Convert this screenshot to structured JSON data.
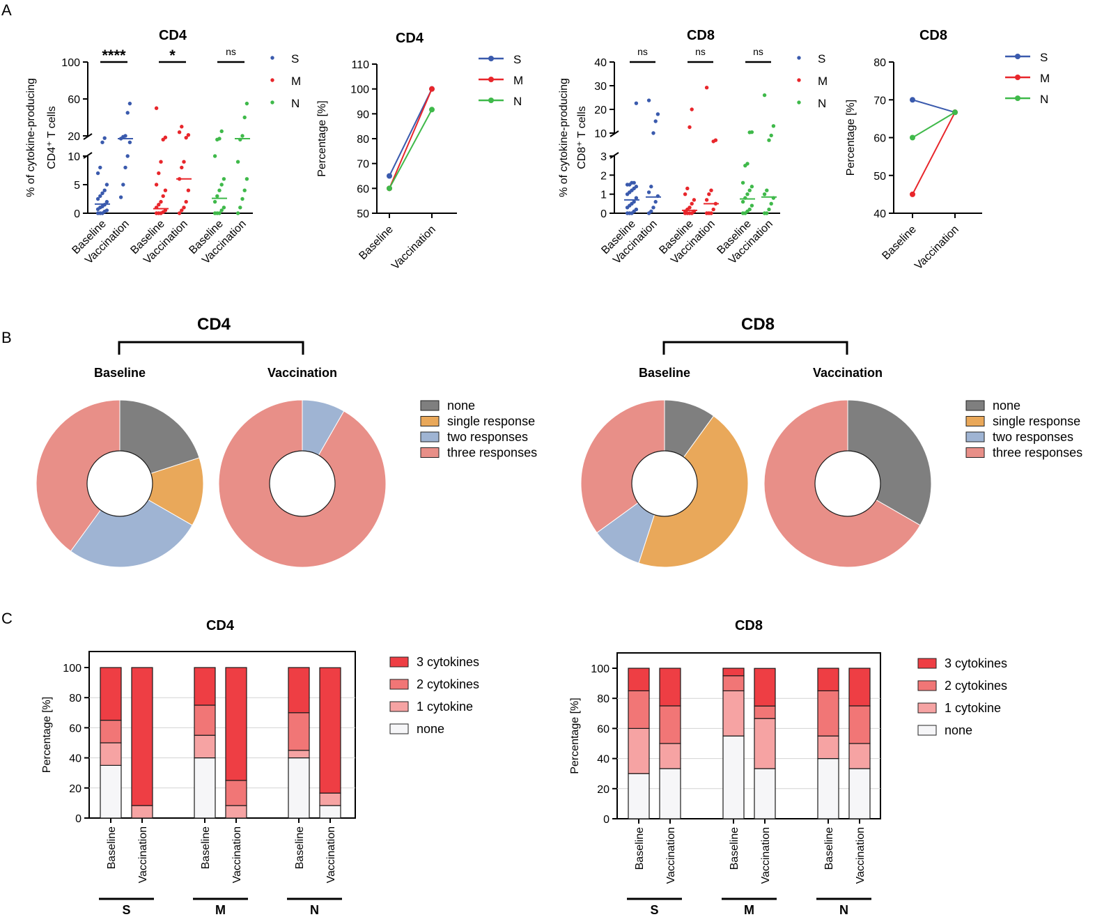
{
  "colors": {
    "S": "#3a5aad",
    "M": "#e8262b",
    "N": "#3fb94a",
    "none": "#7f7f7f",
    "single": "#e9a85a",
    "two": "#9fb4d3",
    "three": "#e88f88",
    "cyt3": "#ee3e44",
    "cyt2": "#f17676",
    "cyt1": "#f6a3a3",
    "cyt0": "#f6f6f8"
  },
  "panels": {
    "A": "A",
    "B": "B",
    "C": "C"
  },
  "chart_data": [
    {
      "id": "A1",
      "type": "scatter",
      "title": "CD4",
      "ylabel_line1": "% of cytokine-producing",
      "ylabel_line2": "CD4⁺ T cells",
      "yaxis": {
        "segments": [
          {
            "range": [
              0,
              10
            ],
            "ticks": [
              0,
              5,
              10
            ]
          },
          {
            "range": [
              20,
              100
            ],
            "ticks": [
              20,
              60,
              100
            ]
          }
        ]
      },
      "groups": [
        {
          "name": "S",
          "significance": "****",
          "baseline": {
            "points": [
              0,
              0,
              0,
              0.3,
              0.5,
              0.7,
              1,
              1.2,
              1.5,
              2,
              2.5,
              3,
              3.5,
              4,
              5,
              7,
              8,
              13,
              17.6
            ],
            "median": 1.6
          },
          "vaccination": {
            "points": [
              2.8,
              5,
              8,
              10,
              13,
              17,
              19,
              20,
              45,
              55
            ],
            "median": 17
          }
        },
        {
          "name": "M",
          "significance": "*",
          "baseline": {
            "points": [
              0,
              0,
              0,
              0.2,
              0.5,
              1,
              1.5,
              2,
              3,
              4,
              5,
              7,
              9,
              16,
              18.3,
              50
            ],
            "median": 0.8
          },
          "vaccination": {
            "points": [
              0,
              0.5,
              1,
              2,
              4,
              6,
              8,
              9,
              18,
              21,
              24,
              30
            ],
            "median": 6
          }
        },
        {
          "name": "N",
          "significance": "ns",
          "baseline": {
            "points": [
              0,
              0,
              0,
              0.5,
              1,
              2,
              3,
              4,
              5,
              6,
              10,
              16,
              17,
              25
            ],
            "median": 2.6
          },
          "vaccination": {
            "points": [
              0,
              1,
              2.5,
              4,
              6,
              9,
              16,
              20,
              40,
              55
            ],
            "median": 17
          }
        }
      ],
      "categories": [
        "Baseline",
        "Vaccination"
      ],
      "legend": [
        "S",
        "M",
        "N"
      ]
    },
    {
      "id": "A2",
      "type": "line",
      "title": "CD4",
      "ylabel": "Percentage [%]",
      "ylim": [
        50,
        110
      ],
      "yticks": [
        50,
        60,
        70,
        80,
        90,
        100,
        110
      ],
      "categories": [
        "Baseline",
        "Vaccination"
      ],
      "series": [
        {
          "name": "S",
          "values": [
            65,
            100
          ]
        },
        {
          "name": "M",
          "values": [
            60,
            100
          ]
        },
        {
          "name": "N",
          "values": [
            60,
            91.7
          ]
        }
      ]
    },
    {
      "id": "A3",
      "type": "scatter",
      "title": "CD8",
      "ylabel_line1": "% of cytokine-producing",
      "ylabel_line2": "CD8⁺ T cells",
      "yaxis": {
        "segments": [
          {
            "range": [
              0,
              3
            ],
            "ticks": [
              0,
              1,
              2,
              3
            ]
          },
          {
            "range": [
              10,
              40
            ],
            "ticks": [
              10,
              20,
              30,
              40
            ]
          }
        ]
      },
      "groups": [
        {
          "name": "S",
          "significance": "ns",
          "baseline": {
            "points": [
              0,
              0,
              0,
              0.1,
              0.2,
              0.3,
              0.4,
              0.5,
              0.6,
              0.8,
              1,
              1.1,
              1.2,
              1.3,
              1.4,
              1.5,
              1.5,
              1.6,
              1.6,
              22.6
            ],
            "median": 0.7
          },
          "vaccination": {
            "points": [
              0,
              0.1,
              0.3,
              0.6,
              0.9,
              1.1,
              1.4,
              10,
              15,
              18,
              23.8
            ],
            "median": 0.85
          }
        },
        {
          "name": "M",
          "significance": "ns",
          "baseline": {
            "points": [
              0,
              0,
              0,
              0,
              0.1,
              0.1,
              0.2,
              0.3,
              0.5,
              0.7,
              1,
              1.3,
              12.5,
              20
            ],
            "median": 0.15
          },
          "vaccination": {
            "points": [
              0,
              0,
              0,
              0.2,
              0.5,
              0.7,
              1,
              1.2,
              6.5,
              7,
              29.2
            ],
            "median": 0.5
          }
        },
        {
          "name": "N",
          "significance": "ns",
          "baseline": {
            "points": [
              0,
              0,
              0.1,
              0.2,
              0.4,
              0.6,
              0.8,
              1,
              1.2,
              1.4,
              1.6,
              2.5,
              2.6,
              10.3,
              10.4
            ],
            "median": 0.75
          },
          "vaccination": {
            "points": [
              0,
              0,
              0.2,
              0.5,
              0.8,
              1,
              1.2,
              7,
              9,
              13,
              26
            ],
            "median": 0.85
          }
        }
      ],
      "categories": [
        "Baseline",
        "Vaccination"
      ],
      "legend": [
        "S",
        "M",
        "N"
      ]
    },
    {
      "id": "A4",
      "type": "line",
      "title": "CD8",
      "ylabel": "Percentage [%]",
      "ylim": [
        40,
        80
      ],
      "yticks": [
        40,
        50,
        60,
        70,
        80
      ],
      "categories": [
        "Baseline",
        "Vaccination"
      ],
      "series": [
        {
          "name": "S",
          "values": [
            70,
            66.7
          ]
        },
        {
          "name": "M",
          "values": [
            45,
            66.7
          ]
        },
        {
          "name": "N",
          "values": [
            60,
            66.7
          ]
        }
      ]
    },
    {
      "id": "B1",
      "type": "pie",
      "title": "CD4",
      "subtitles": [
        "Baseline",
        "Vaccination"
      ],
      "legend": [
        "none",
        "single response",
        "two responses",
        "three responses"
      ],
      "donuts": [
        {
          "label": "Baseline",
          "values": [
            20,
            13.3,
            26.7,
            40
          ]
        },
        {
          "label": "Vaccination",
          "values": [
            0,
            0,
            8.3,
            91.7
          ]
        }
      ]
    },
    {
      "id": "B2",
      "type": "pie",
      "title": "CD8",
      "subtitles": [
        "Baseline",
        "Vaccination"
      ],
      "legend": [
        "none",
        "single response",
        "two responses",
        "three responses"
      ],
      "donuts": [
        {
          "label": "Baseline",
          "values": [
            10,
            45,
            10,
            35
          ]
        },
        {
          "label": "Vaccination",
          "values": [
            33.3,
            0,
            0,
            66.7
          ]
        }
      ]
    },
    {
      "id": "C1",
      "type": "bar",
      "title": "CD4",
      "ylabel": "Percentage [%]",
      "ylim": [
        0,
        100
      ],
      "yticks": [
        0,
        20,
        40,
        60,
        80,
        100
      ],
      "groups": [
        "S",
        "M",
        "N"
      ],
      "categories": [
        "Baseline",
        "Vaccination"
      ],
      "legend": [
        "3 cytokines",
        "2 cytokines",
        "1 cytokine",
        "none"
      ],
      "bars": [
        {
          "group": "S",
          "category": "Baseline",
          "none": 35,
          "c1": 15,
          "c2": 15,
          "c3": 35
        },
        {
          "group": "S",
          "category": "Vaccination",
          "none": 0,
          "c1": 8.3,
          "c2": 0,
          "c3": 91.7
        },
        {
          "group": "M",
          "category": "Baseline",
          "none": 40,
          "c1": 15,
          "c2": 20,
          "c3": 25
        },
        {
          "group": "M",
          "category": "Vaccination",
          "none": 0,
          "c1": 8.3,
          "c2": 16.7,
          "c3": 75
        },
        {
          "group": "N",
          "category": "Baseline",
          "none": 40,
          "c1": 5,
          "c2": 25,
          "c3": 30
        },
        {
          "group": "N",
          "category": "Vaccination",
          "none": 8.3,
          "c1": 8.3,
          "c2": 0,
          "c3": 83.3
        }
      ]
    },
    {
      "id": "C2",
      "type": "bar",
      "title": "CD8",
      "ylabel": "Percentage [%]",
      "ylim": [
        0,
        100
      ],
      "yticks": [
        0,
        20,
        40,
        60,
        80,
        100
      ],
      "groups": [
        "S",
        "M",
        "N"
      ],
      "categories": [
        "Baseline",
        "Vaccination"
      ],
      "legend": [
        "3 cytokines",
        "2 cytokines",
        "1 cytokine",
        "none"
      ],
      "bars": [
        {
          "group": "S",
          "category": "Baseline",
          "none": 30,
          "c1": 30,
          "c2": 25,
          "c3": 15
        },
        {
          "group": "S",
          "category": "Vaccination",
          "none": 33.3,
          "c1": 16.7,
          "c2": 25,
          "c3": 25
        },
        {
          "group": "M",
          "category": "Baseline",
          "none": 55,
          "c1": 30,
          "c2": 10,
          "c3": 5
        },
        {
          "group": "M",
          "category": "Vaccination",
          "none": 33.3,
          "c1": 33.3,
          "c2": 8.3,
          "c3": 25
        },
        {
          "group": "N",
          "category": "Baseline",
          "none": 40,
          "c1": 15,
          "c2": 30,
          "c3": 15
        },
        {
          "group": "N",
          "category": "Vaccination",
          "none": 33.3,
          "c1": 16.7,
          "c2": 25,
          "c3": 25
        }
      ]
    }
  ]
}
